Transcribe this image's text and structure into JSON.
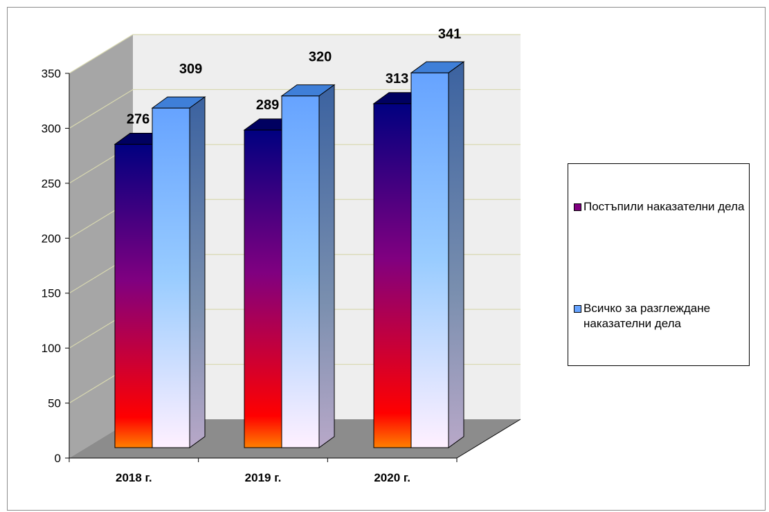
{
  "chart_data": {
    "type": "bar",
    "categories": [
      "2018 г.",
      "2019 г.",
      "2020 г."
    ],
    "series": [
      {
        "name": "Постъпили наказателни дела",
        "values": [
          276,
          289,
          313
        ],
        "colors": {
          "top": "#000080",
          "mid": "#800080",
          "bottom": "#ff0000",
          "base": "#ff8000"
        }
      },
      {
        "name": "Всичко за разглеждане наказателни дела",
        "values": [
          309,
          320,
          341
        ],
        "colors": {
          "top": "#66a3ff",
          "mid": "#99ccff",
          "bottom": "#fff0ff",
          "side": "#3b62a0"
        }
      }
    ],
    "value_labels": [
      "276",
      "309",
      "289",
      "320",
      "313",
      "341"
    ],
    "y_ticks": [
      "0",
      "50",
      "100",
      "150",
      "200",
      "250",
      "300",
      "350"
    ],
    "ylim": [
      0,
      350
    ],
    "grid": true,
    "legend_position": "right",
    "view": "3d",
    "title": "",
    "xlabel": "",
    "ylabel": ""
  },
  "legend": {
    "items": [
      {
        "label": "Постъпили наказателни дела",
        "color": "#800080"
      },
      {
        "label": "Всичко за разглеждане наказателни дела",
        "color": "#66a3ff"
      }
    ]
  }
}
